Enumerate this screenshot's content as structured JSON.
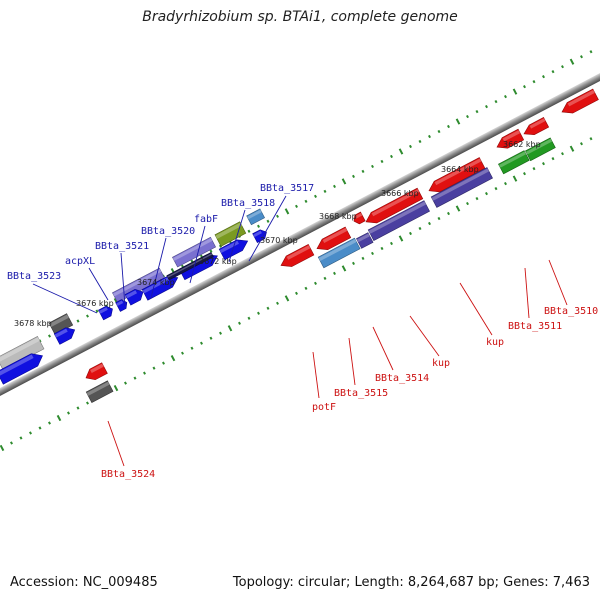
{
  "title": "Bradyrhizobium sp. BTAi1, complete genome",
  "footer": {
    "accession": "Accession: NC_009485",
    "topology": "Topology: circular; Length: 8,264,687 bp; Genes: 7,463"
  },
  "colors": {
    "backbone": "#7a7a7a",
    "ruler_dots": "#2e8b2e",
    "forward_label": "#1a1aaa",
    "reverse_label": "#cc1111",
    "red_gene": "#e01010",
    "blue_gene": "#1010e0",
    "purple_gene": "#4a3fa0",
    "light_purple_gene": "#7a70d0",
    "green_gene": "#229922",
    "olive_gene": "#7a9a20",
    "steel_gene": "#4a8cc8",
    "grey_gene": "#555555",
    "light_grey_gene": "#bbbbbb"
  },
  "ruler_ticks": [
    "3662 kbp",
    "3664 kbp",
    "3666 kbp",
    "3668 kbp",
    "3670 kbp",
    "3672 kbp",
    "3674 kbp",
    "3676 kbp",
    "3678 kbp"
  ],
  "forward_genes": [
    "BBta_3517",
    "BBta_3518",
    "fabF",
    "BBta_3520",
    "BBta_3521",
    "acpXL",
    "BBta_3523"
  ],
  "reverse_genes": [
    "BBta_3510",
    "BBta_3511",
    "kup",
    "kup",
    "BBta_3514",
    "BBta_3515",
    "potF",
    "BBta_3524"
  ]
}
